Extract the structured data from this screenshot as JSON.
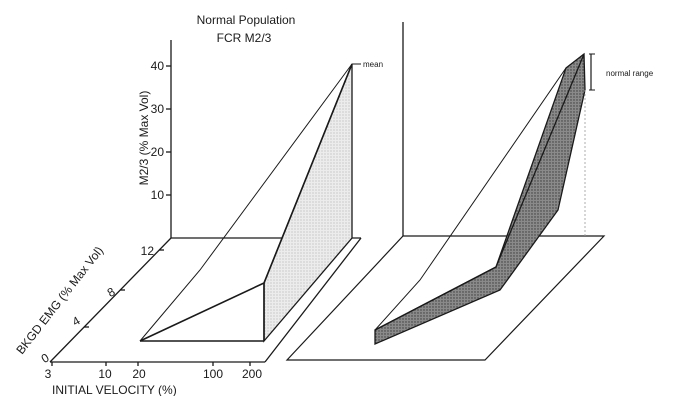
{
  "title": {
    "line1": "Normal Population",
    "line2": "FCR M2/3"
  },
  "axes": {
    "vertical_label": "M2/3 (% Max Vol)",
    "vertical_ticks": [
      "40",
      "30",
      "20",
      "10"
    ],
    "depth_label": "BKGD EMG (% Max Vol)",
    "depth_ticks": [
      "12",
      "8",
      "4",
      "0"
    ],
    "horizontal_label": "INITIAL VELOCITY (%)",
    "horizontal_ticks": [
      "3",
      "10",
      "20",
      "100",
      "200"
    ]
  },
  "annotations": {
    "mean": "mean",
    "normal_range": "normal range"
  },
  "colors": {
    "ink": "#1a1a1a",
    "light_shade": "#dcdcdc",
    "dark_shade": "#7a7a7a"
  }
}
